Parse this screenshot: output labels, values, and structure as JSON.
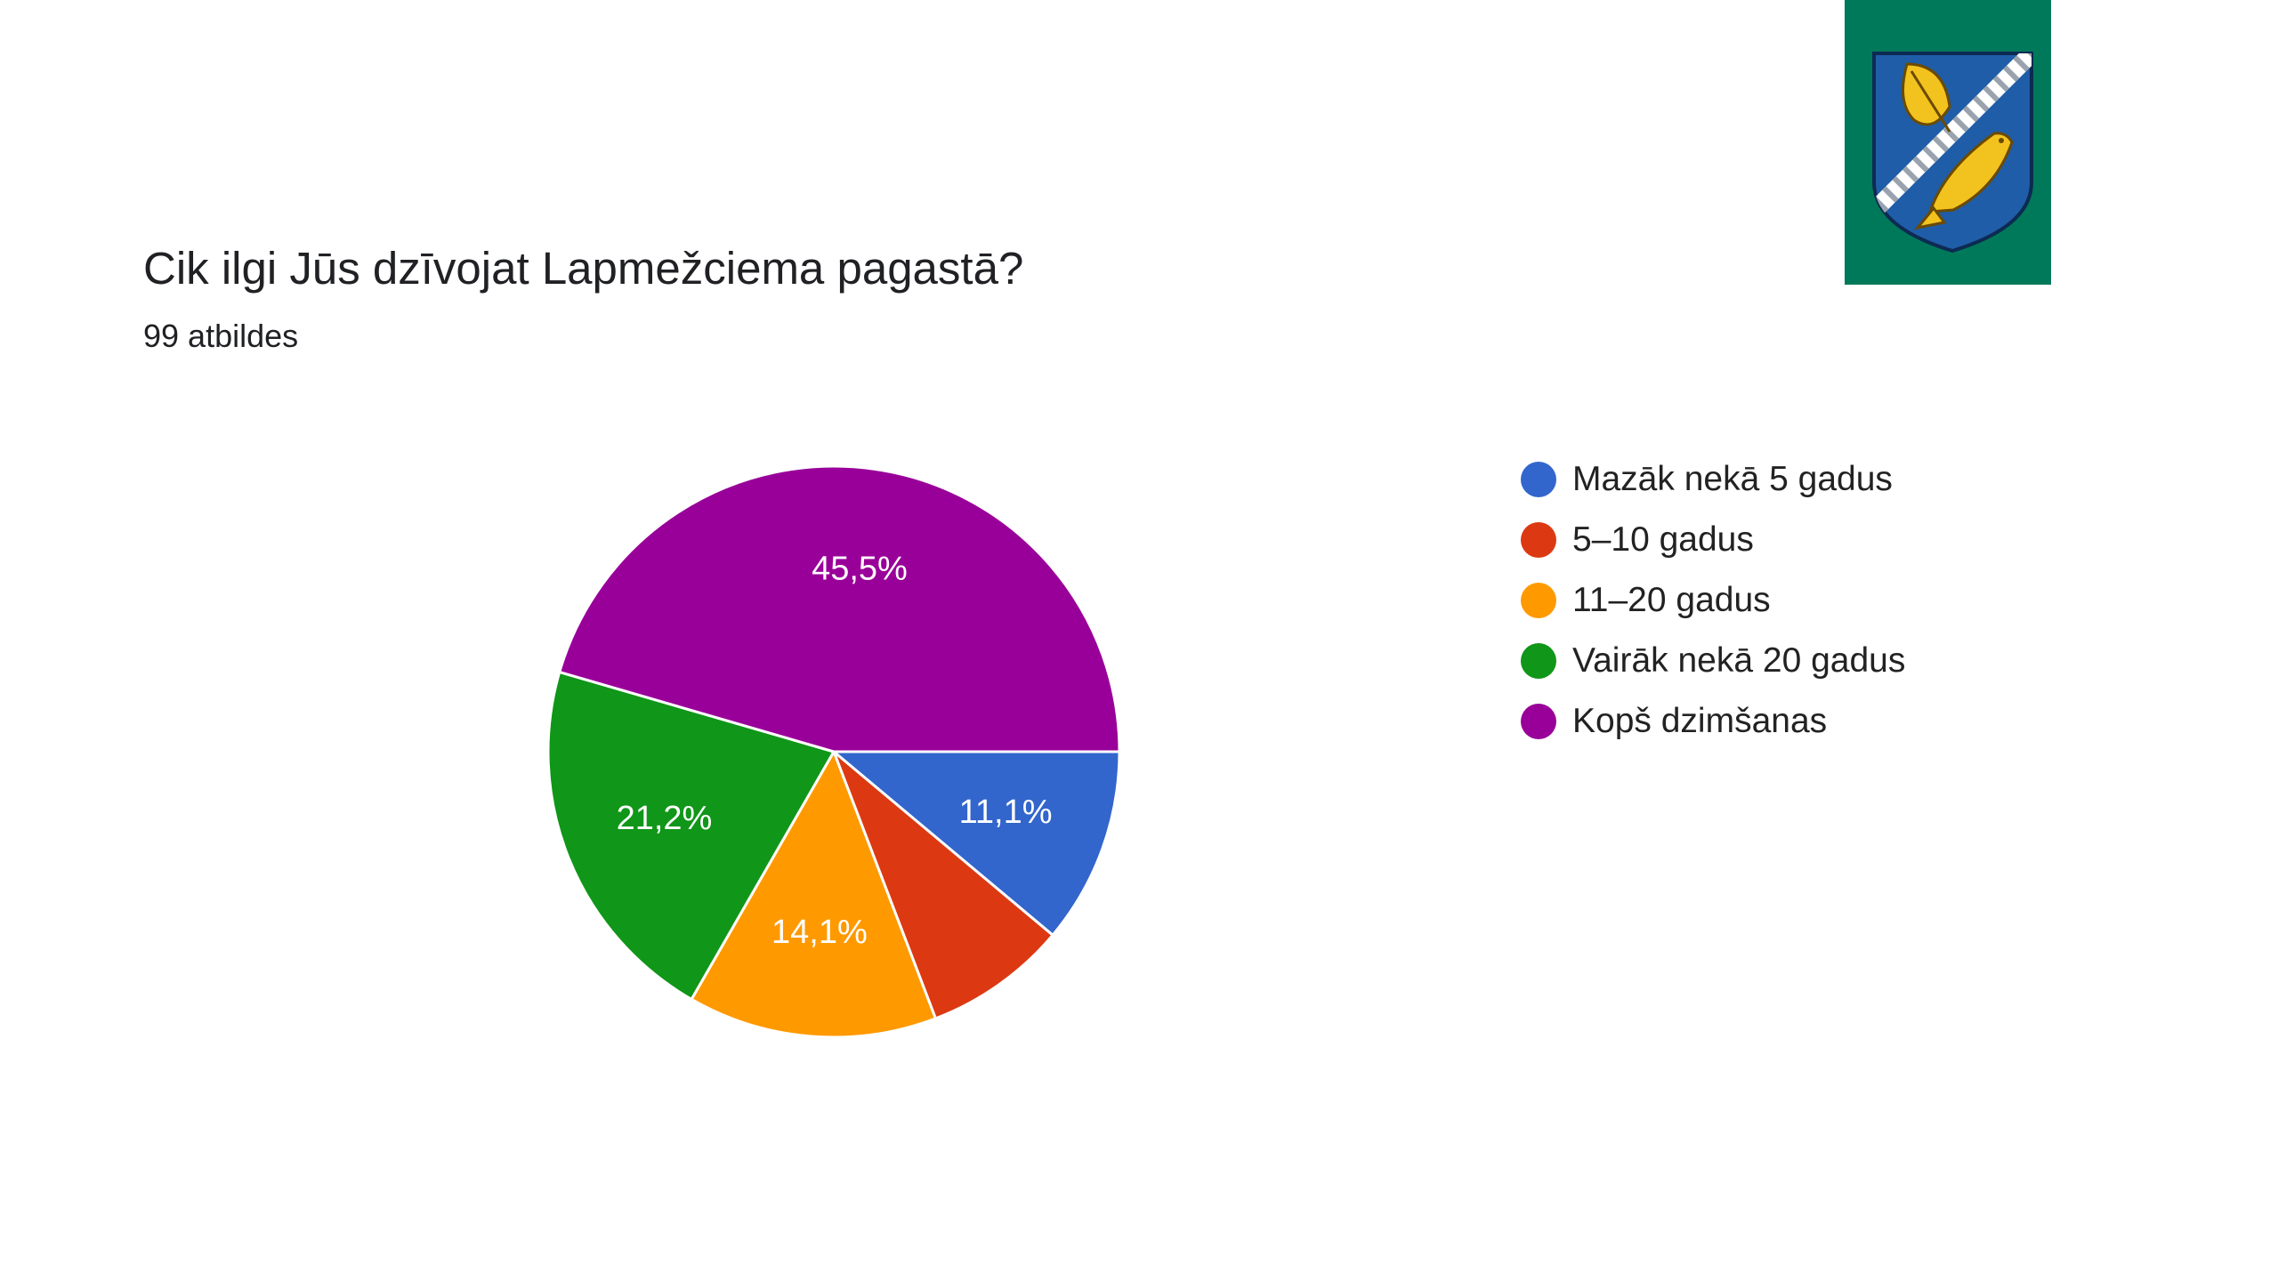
{
  "chart_data": {
    "type": "pie",
    "title": "Cik ilgi Jūs dzīvojat Lapmežciema pagastā?",
    "subtitle": "99 atbildes",
    "slices": [
      {
        "label": "Mazāk nekā 5 gadus",
        "value": 11.1,
        "display": "11,1%",
        "color": "#3366cc"
      },
      {
        "label": "5–10 gadus",
        "value": 8.1,
        "display": "",
        "color": "#dc3912"
      },
      {
        "label": "11–20 gadus",
        "value": 14.1,
        "display": "14,1%",
        "color": "#ff9900"
      },
      {
        "label": "Vairāk nekā 20 gadus",
        "value": 21.2,
        "display": "21,2%",
        "color": "#109618"
      },
      {
        "label": "Kopš dzimšanas",
        "value": 45.5,
        "display": "45,5%",
        "color": "#990099"
      }
    ],
    "start_angle_deg": 90,
    "direction": "clockwise",
    "legend_position": "right"
  },
  "coat_of_arms": {
    "background_color": "#00795a",
    "shield_color": "#1f5da8",
    "charge_color": "#f2c31e",
    "icon": "birch-leaf-and-fish-coat-of-arms-icon"
  }
}
